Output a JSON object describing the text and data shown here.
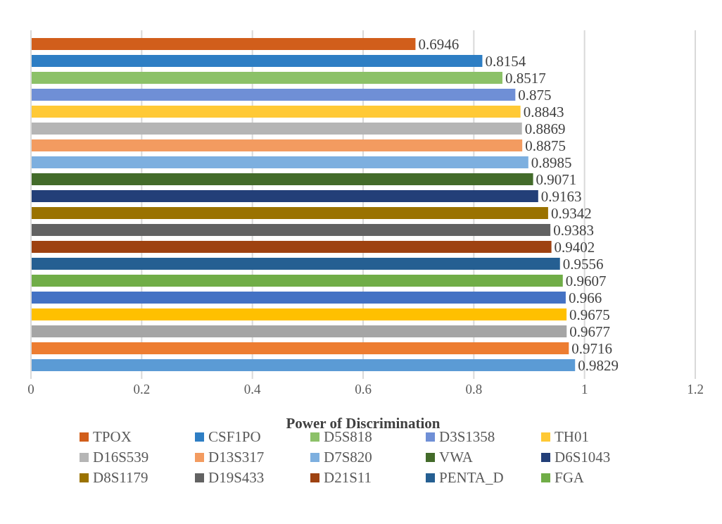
{
  "chart_data": {
    "type": "bar",
    "orientation": "horizontal",
    "xlabel": "Power of Discrimination",
    "categories": [
      null
    ],
    "series": [
      {
        "name": "TPOX",
        "color": "#d15e1b",
        "values": [
          0.6946
        ]
      },
      {
        "name": "CSF1PO",
        "color": "#2e7ec4",
        "values": [
          0.8154
        ]
      },
      {
        "name": "D5S818",
        "color": "#8cc168",
        "values": [
          0.8517
        ]
      },
      {
        "name": "D3S1358",
        "color": "#6f8fd6",
        "values": [
          0.875
        ]
      },
      {
        "name": "TH01",
        "color": "#ffc935",
        "values": [
          0.8843
        ]
      },
      {
        "name": "D16S539",
        "color": "#b5b5b5",
        "values": [
          0.8869
        ]
      },
      {
        "name": "D13S317",
        "color": "#f39b60",
        "values": [
          0.8875
        ]
      },
      {
        "name": "D7S820",
        "color": "#7dafdf",
        "values": [
          0.8985
        ]
      },
      {
        "name": "VWA",
        "color": "#436b2a",
        "values": [
          0.9071
        ]
      },
      {
        "name": "D6S1043",
        "color": "#233f78",
        "values": [
          0.9163
        ]
      },
      {
        "name": "D8S1179",
        "color": "#9a7200",
        "values": [
          0.9342
        ]
      },
      {
        "name": "D19S433",
        "color": "#626262",
        "values": [
          0.9383
        ]
      },
      {
        "name": "D21S11",
        "color": "#9e4211",
        "values": [
          0.9402
        ]
      },
      {
        "name": "PENTA_D",
        "color": "#255f92",
        "values": [
          0.9556
        ]
      },
      {
        "name": "FGA",
        "color": "#70ad47",
        "values": [
          0.9607
        ]
      },
      {
        "color": "#4472c4",
        "values": [
          0.966
        ]
      },
      {
        "color": "#ffc000",
        "values": [
          0.9675
        ]
      },
      {
        "color": "#a5a5a5",
        "values": [
          0.9677
        ]
      },
      {
        "color": "#ed7d31",
        "values": [
          0.9716
        ]
      },
      {
        "color": "#5b9bd5",
        "values": [
          0.9829
        ]
      }
    ],
    "xlim": [
      0,
      1.2
    ],
    "xticks": [
      0,
      0.2,
      0.4,
      0.6,
      0.8,
      1,
      1.2
    ],
    "grid": "x",
    "data_labels": true,
    "legend": "bottom"
  }
}
